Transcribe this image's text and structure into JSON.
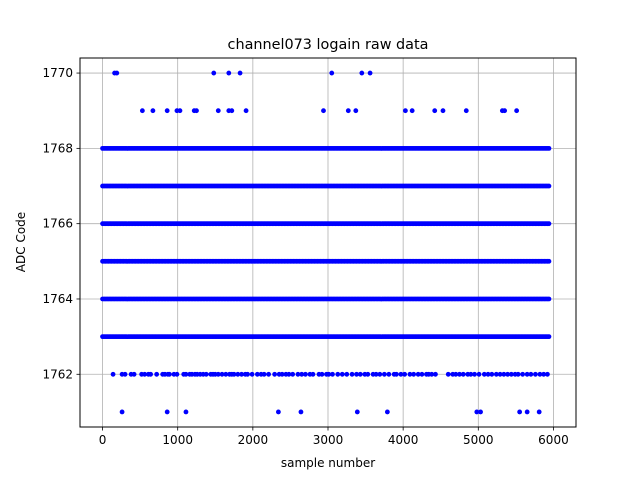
{
  "chart_data": {
    "type": "scatter",
    "title": "channel073 logain raw data",
    "xlabel": "sample number",
    "ylabel": "ADC Code",
    "xlim": [
      -300,
      6300
    ],
    "ylim": [
      1760.6,
      1770.4
    ],
    "xticks": [
      0,
      1000,
      2000,
      3000,
      4000,
      5000,
      6000
    ],
    "xtick_labels": [
      "0",
      "1000",
      "2000",
      "3000",
      "4000",
      "5000",
      "6000"
    ],
    "yticks": [
      1762,
      1764,
      1766,
      1768,
      1770
    ],
    "ytick_labels": [
      "1762",
      "1764",
      "1766",
      "1768",
      "1770"
    ],
    "grid": true,
    "marker_color": "#0000ff",
    "x_range": [
      0,
      5940
    ],
    "dense_levels": [
      1763,
      1764,
      1765,
      1766,
      1767,
      1768
    ],
    "sparse_points": [
      {
        "y": 1770,
        "x": [
          160,
          190,
          1480,
          1680,
          1830,
          3050,
          3450,
          3560
        ]
      },
      {
        "y": 1769,
        "x": [
          530,
          670,
          860,
          990,
          1030,
          1220,
          1250,
          1540,
          1680,
          1720,
          1910,
          2940,
          3270,
          3370,
          4030,
          4120,
          4420,
          4530,
          4840,
          5320,
          5350,
          5510
        ]
      },
      {
        "y": 1762,
        "x": [
          140,
          260,
          300,
          380,
          420,
          520,
          560,
          610,
          640,
          720,
          800,
          830,
          870,
          890,
          950,
          990,
          1080,
          1110,
          1160,
          1190,
          1230,
          1260,
          1300,
          1340,
          1380,
          1440,
          1470,
          1500,
          1540,
          1590,
          1640,
          1690,
          1720,
          1750,
          1800,
          1850,
          1900,
          1930,
          1990,
          2060,
          2110,
          2150,
          2210,
          2290,
          2350,
          2390,
          2440,
          2480,
          2530,
          2600,
          2650,
          2700,
          2760,
          2800,
          2880,
          2920,
          2980,
          3010,
          3060,
          3130,
          3190,
          3250,
          3320,
          3380,
          3430,
          3490,
          3530,
          3600,
          3640,
          3690,
          3750,
          3810,
          3880,
          3910,
          3970,
          4020,
          4090,
          4140,
          4200,
          4250,
          4310,
          4340,
          4380,
          4430,
          4600,
          4660,
          4700,
          4750,
          4800,
          4860,
          4900,
          4950,
          5010,
          5080,
          5130,
          5180,
          5240,
          5290,
          5340,
          5390,
          5440,
          5490,
          5530,
          5590,
          5650,
          5700,
          5760,
          5820,
          5870,
          5920
        ]
      },
      {
        "y": 1761,
        "x": [
          260,
          860,
          1110,
          2340,
          2640,
          3390,
          3790,
          4980,
          5030,
          5550,
          5650,
          5810
        ]
      }
    ]
  }
}
